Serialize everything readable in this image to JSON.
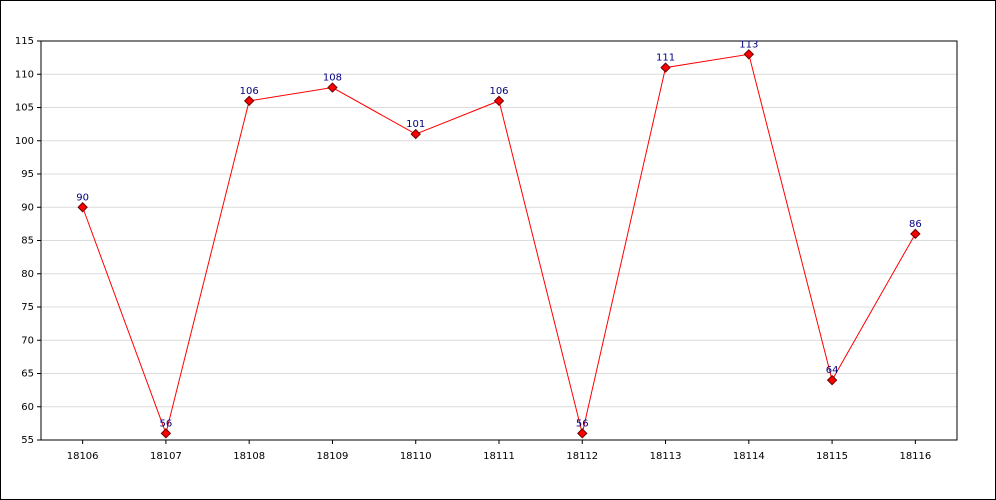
{
  "chart_data": {
    "type": "line",
    "categories": [
      "18106",
      "18107",
      "18108",
      "18109",
      "18110",
      "18111",
      "18112",
      "18113",
      "18114",
      "18115",
      "18116"
    ],
    "series": [
      {
        "color": "#ff0000",
        "values": [
          90,
          56,
          106,
          108,
          101,
          106,
          56,
          111,
          113,
          64,
          86
        ]
      }
    ],
    "ylim": [
      55,
      115
    ],
    "yticks": [
      55,
      60,
      65,
      70,
      75,
      80,
      85,
      90,
      95,
      100,
      105,
      110,
      115
    ],
    "grid": true
  }
}
